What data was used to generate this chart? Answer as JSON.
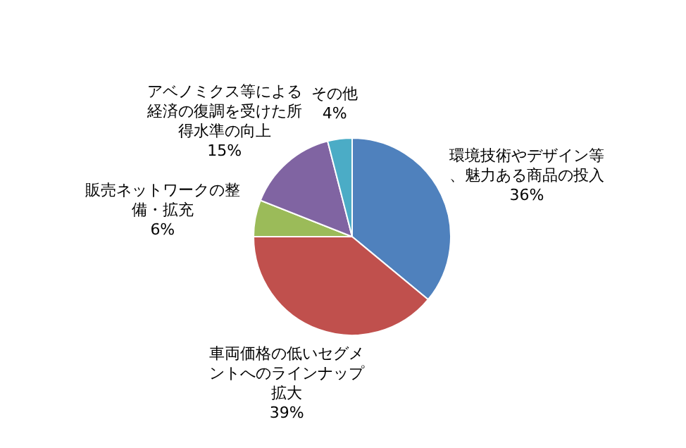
{
  "chart_data": {
    "type": "pie",
    "categories": [
      "環境技術やデザイン等、魅力ある商品の投入",
      "車両価格の低いセグメントへのラインナップ拡大",
      "販売ネットワークの整備・拡充",
      "アベノミクス等による経済の復調を受けた所得水準の向上",
      "その他"
    ],
    "values": [
      36,
      39,
      6,
      15,
      4
    ],
    "colors": [
      "#4f81bd",
      "#c0504d",
      "#9bbb59",
      "#8064a2",
      "#4bacc6"
    ],
    "value_labels": [
      "36%",
      "39%",
      "6%",
      "15%",
      "4%"
    ]
  }
}
